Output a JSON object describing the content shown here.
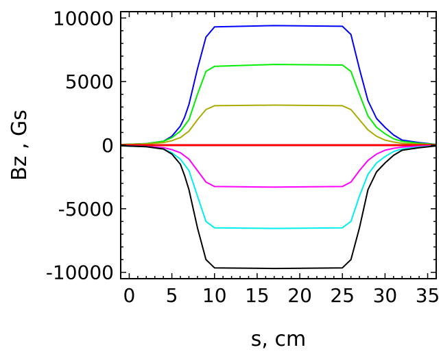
{
  "chart_data": {
    "type": "line",
    "title": "",
    "xlabel": "s, cm",
    "ylabel": "Bz , Gs",
    "xlim": [
      -1,
      36
    ],
    "ylim": [
      -10500,
      10500
    ],
    "x_ticks": [
      0,
      5,
      10,
      15,
      20,
      25,
      30,
      35
    ],
    "x_tick_labels": [
      "0",
      "5",
      "10",
      "15",
      "20",
      "25",
      "30",
      "35"
    ],
    "y_ticks": [
      10000,
      5000,
      0,
      -5000,
      -10000
    ],
    "y_tick_labels": [
      "10000",
      "5000",
      "0",
      "-5000",
      "-10000"
    ],
    "grid": false,
    "legend": "none",
    "series": [
      {
        "color": "#0000ff",
        "x": [
          -1,
          2,
          4,
          5,
          6,
          6.5,
          7,
          8,
          9,
          10,
          17,
          25,
          26,
          27,
          28,
          29,
          30,
          31,
          32,
          34,
          36
        ],
        "y": [
          50,
          120,
          300,
          700,
          1500,
          2200,
          3200,
          6000,
          8500,
          9300,
          9400,
          9350,
          8700,
          6000,
          3500,
          2100,
          1400,
          800,
          400,
          200,
          60
        ]
      },
      {
        "color": "#00ee00",
        "x": [
          -1,
          2,
          4,
          5,
          6,
          7,
          8,
          9,
          10,
          17,
          25,
          26,
          27,
          28,
          29,
          30,
          31,
          32,
          34,
          36
        ],
        "y": [
          50,
          120,
          300,
          600,
          1100,
          2000,
          4000,
          5800,
          6200,
          6350,
          6300,
          5800,
          4000,
          2300,
          1400,
          900,
          500,
          300,
          150,
          60
        ]
      },
      {
        "color": "#aaaa00",
        "x": [
          -1,
          2,
          4,
          5,
          6,
          7,
          8,
          9,
          10,
          17,
          25,
          26,
          27,
          28,
          29,
          30,
          31,
          32,
          34,
          36
        ],
        "y": [
          40,
          100,
          200,
          350,
          600,
          1100,
          2000,
          2800,
          3100,
          3150,
          3100,
          2800,
          2000,
          1200,
          700,
          400,
          250,
          150,
          80,
          40
        ]
      },
      {
        "color": "#ff0000",
        "x": [
          -1,
          36
        ],
        "y": [
          0,
          0
        ]
      },
      {
        "color": "#ff00ff",
        "x": [
          -1,
          2,
          4,
          5,
          6,
          7,
          8,
          9,
          10,
          17,
          25,
          26,
          27,
          28,
          29,
          30,
          31,
          32,
          34,
          36
        ],
        "y": [
          -40,
          -100,
          -200,
          -350,
          -600,
          -1100,
          -2000,
          -2900,
          -3250,
          -3300,
          -3250,
          -2900,
          -2000,
          -1200,
          -700,
          -400,
          -250,
          -150,
          -80,
          -40
        ]
      },
      {
        "color": "#00eeee",
        "x": [
          -1,
          2,
          4,
          5,
          6,
          7,
          8,
          9,
          10,
          17,
          25,
          26,
          27,
          28,
          29,
          30,
          31,
          32,
          34,
          36
        ],
        "y": [
          -50,
          -120,
          -300,
          -600,
          -1100,
          -2000,
          -4000,
          -6000,
          -6500,
          -6550,
          -6500,
          -6000,
          -4000,
          -2300,
          -1400,
          -900,
          -500,
          -300,
          -150,
          -60
        ]
      },
      {
        "color": "#000000",
        "x": [
          -1,
          2,
          4,
          5,
          6,
          6.5,
          7,
          8,
          9,
          10,
          17,
          25,
          26,
          27,
          28,
          29,
          30,
          31,
          32,
          34,
          36
        ],
        "y": [
          -50,
          -120,
          -300,
          -700,
          -1500,
          -2400,
          -3500,
          -6500,
          -9000,
          -9650,
          -9700,
          -9650,
          -9000,
          -6500,
          -3500,
          -2100,
          -1400,
          -800,
          -400,
          -200,
          -60
        ]
      }
    ]
  }
}
